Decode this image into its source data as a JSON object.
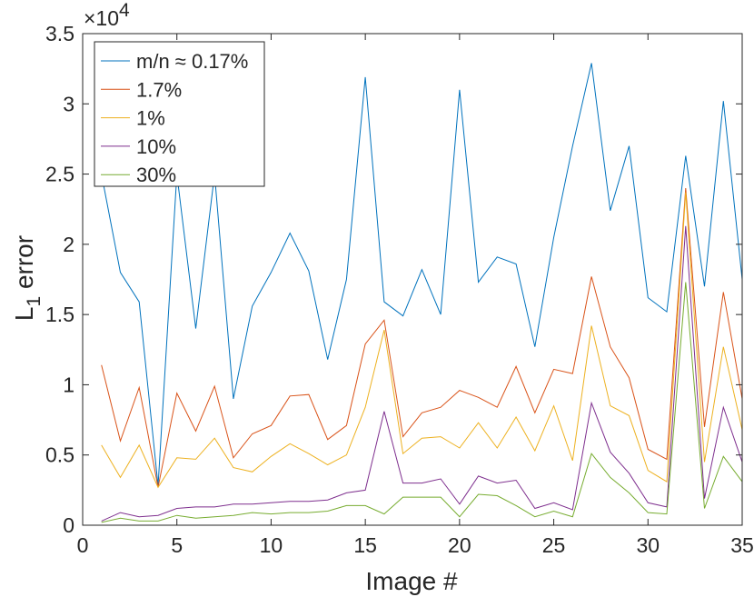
{
  "chart_data": {
    "type": "line",
    "xlabel": "Image #",
    "ylabel_main": "L",
    "ylabel_sub": "1",
    "ylabel_rest": " error",
    "y_multiplier_base": "×10",
    "y_multiplier_exp": "4",
    "xlim": [
      0,
      35
    ],
    "ylim": [
      0,
      35000
    ],
    "x_ticks": [
      0,
      5,
      10,
      15,
      20,
      25,
      30,
      35
    ],
    "x_tick_labels": [
      "0",
      "5",
      "10",
      "15",
      "20",
      "25",
      "30",
      "35"
    ],
    "y_ticks": [
      0,
      5000,
      10000,
      15000,
      20000,
      25000,
      30000,
      35000
    ],
    "y_tick_labels": [
      "0",
      "0.5",
      "1",
      "1.5",
      "2",
      "2.5",
      "3",
      "3.5"
    ],
    "legend_position": "top-left",
    "grid": false,
    "x": [
      1,
      2,
      3,
      4,
      5,
      6,
      7,
      8,
      9,
      10,
      11,
      12,
      13,
      14,
      15,
      16,
      17,
      18,
      19,
      20,
      21,
      22,
      23,
      24,
      25,
      26,
      27,
      28,
      29,
      30,
      31,
      32,
      33,
      34,
      35
    ],
    "series": [
      {
        "name": "m/n ≈ 0.17%",
        "color": "#0072BD",
        "values": [
          25000,
          18000,
          15900,
          2800,
          25000,
          14000,
          25000,
          9000,
          15600,
          18000,
          20800,
          18100,
          11800,
          17500,
          31900,
          15900,
          14900,
          18200,
          15000,
          31000,
          17300,
          19100,
          18600,
          12700,
          20500,
          27000,
          32900,
          22400,
          27000,
          16200,
          15200,
          26300,
          17000,
          30200,
          17500
        ]
      },
      {
        "name": "1.7%",
        "color": "#D95319",
        "values": [
          11400,
          6000,
          9800,
          2700,
          9400,
          6700,
          9900,
          4800,
          6500,
          7100,
          9200,
          9300,
          6100,
          7100,
          12900,
          14600,
          6300,
          8000,
          8400,
          9600,
          9100,
          8400,
          11300,
          8000,
          11100,
          10800,
          17700,
          12700,
          10500,
          5400,
          4700,
          24000,
          7000,
          16600,
          9000
        ]
      },
      {
        "name": "1%",
        "color": "#EDB120",
        "values": [
          5700,
          3400,
          5700,
          2700,
          4800,
          4700,
          6200,
          4100,
          3800,
          4900,
          5800,
          5100,
          4300,
          5000,
          8400,
          13900,
          5100,
          6200,
          6300,
          5500,
          7300,
          5500,
          7700,
          5300,
          8500,
          4600,
          14200,
          8500,
          7800,
          3900,
          3100,
          23700,
          4500,
          12700,
          6800
        ]
      },
      {
        "name": "10%",
        "color": "#7E2F8E",
        "values": [
          300,
          900,
          600,
          700,
          1200,
          1300,
          1300,
          1500,
          1500,
          1600,
          1700,
          1700,
          1800,
          2300,
          2500,
          8100,
          3000,
          3000,
          3300,
          1500,
          3500,
          3000,
          3200,
          1200,
          1600,
          1100,
          8700,
          5200,
          3700,
          1600,
          1300,
          21300,
          1900,
          8400,
          4500
        ]
      },
      {
        "name": "30%",
        "color": "#77AC30",
        "values": [
          200,
          500,
          300,
          300,
          700,
          500,
          600,
          700,
          900,
          800,
          900,
          900,
          1000,
          1400,
          1400,
          800,
          2000,
          2000,
          2000,
          600,
          2200,
          2100,
          1400,
          600,
          1000,
          600,
          5100,
          3400,
          2300,
          900,
          800,
          17300,
          1200,
          4900,
          3100
        ]
      }
    ]
  }
}
